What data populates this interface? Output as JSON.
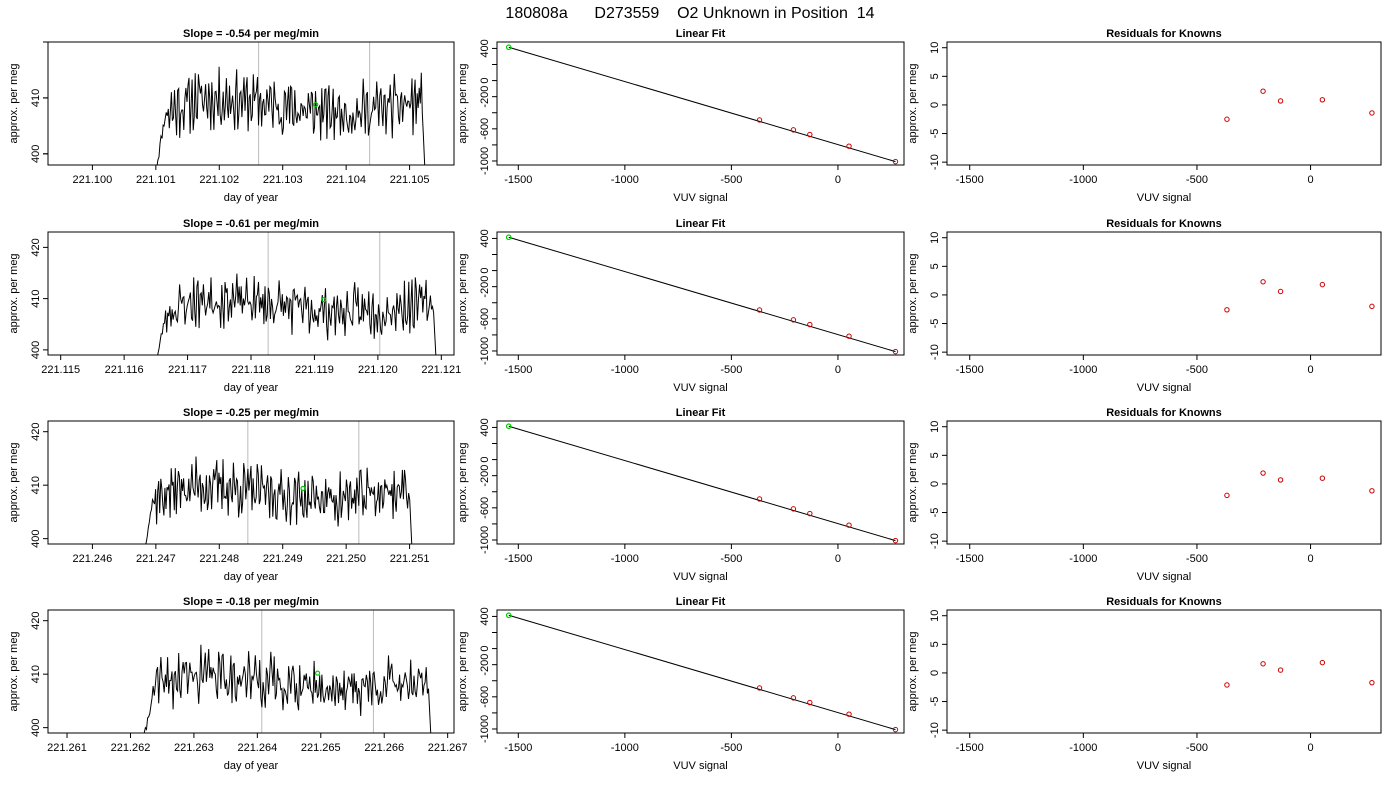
{
  "figure": {
    "title": "180808a      D273559    O2 Unknown in Position  14"
  },
  "colors": {
    "trace": "#000000",
    "unknown_point": "#00cc00",
    "known_points": "#cc0000",
    "marker_lines": "#bbbbbb",
    "axes": "#000000"
  },
  "chart_data": [
    {
      "type": "line",
      "row": 1,
      "title": "Slope =  -0.54  per meg/min",
      "xlabel": "day of year",
      "ylabel": "approx. per meg",
      "xlim": [
        221.0993,
        221.1057
      ],
      "ylim": [
        398,
        420
      ],
      "xticks": [
        "221.100",
        "221.101",
        "221.102",
        "221.103",
        "221.104",
        "221.105"
      ],
      "yticks": [
        "400",
        "410"
      ],
      "trace_range": [
        221.101,
        221.10525
      ],
      "vlines": [
        221.10262,
        221.10437
      ],
      "unknown_point": {
        "x": 221.10352,
        "y": 408.8
      },
      "seed": 11
    },
    {
      "type": "line",
      "row": 1,
      "title": "Linear Fit",
      "xlabel": "VUV signal",
      "ylabel": "approx. per meg",
      "xlim": [
        -1600,
        310
      ],
      "ylim": [
        -1050,
        480
      ],
      "xticks": [
        "-1500",
        "-1000",
        "-500",
        "0"
      ],
      "yticks": [
        "-1000",
        "-600",
        "-200",
        "0",
        "400"
      ],
      "fit_line": {
        "x": [
          -1545,
          270
        ],
        "y": [
          415,
          -1008
        ]
      },
      "known_points": {
        "x": [
          -368,
          -209,
          -132,
          52,
          270
        ],
        "y": [
          -490,
          -613,
          -671,
          -816,
          -1008
        ]
      },
      "unknown_point": {
        "x": -1545,
        "y": 415
      }
    },
    {
      "type": "scatter",
      "row": 1,
      "title": "Residuals for Knowns",
      "xlabel": "VUV signal",
      "ylabel": "approx. per meg",
      "xlim": [
        -1600,
        310
      ],
      "ylim": [
        -10.5,
        11
      ],
      "xticks": [
        "-1500",
        "-1000",
        "-500",
        "0"
      ],
      "yticks": [
        "-10",
        "-5",
        "0",
        "5",
        "10"
      ],
      "known_points": {
        "x": [
          -368,
          -209,
          -132,
          52,
          270
        ],
        "y": [
          -2.5,
          2.4,
          0.7,
          0.9,
          -1.4
        ]
      }
    },
    {
      "type": "line",
      "row": 2,
      "title": "Slope =  -0.61  per meg/min",
      "xlabel": "day of year",
      "ylabel": "approx. per meg",
      "xlim": [
        221.1148,
        221.1212
      ],
      "ylim": [
        399,
        423
      ],
      "xticks": [
        "221.115",
        "221.116",
        "221.117",
        "221.118",
        "221.119",
        "221.120",
        "221.121"
      ],
      "yticks": [
        "400",
        "410",
        "420"
      ],
      "trace_range": [
        221.1165,
        221.12093
      ],
      "vlines": [
        221.11827,
        221.12003
      ],
      "unknown_point": {
        "x": 221.11915,
        "y": 409.8
      },
      "seed": 23
    },
    {
      "type": "line",
      "row": 2,
      "title": "Linear Fit",
      "xlabel": "VUV signal",
      "ylabel": "approx. per meg",
      "xlim": [
        -1600,
        310
      ],
      "ylim": [
        -1050,
        480
      ],
      "xticks": [
        "-1500",
        "-1000",
        "-500",
        "0"
      ],
      "yticks": [
        "-1000",
        "-600",
        "-200",
        "0",
        "400"
      ],
      "fit_line": {
        "x": [
          -1545,
          270
        ],
        "y": [
          415,
          -1008
        ]
      },
      "known_points": {
        "x": [
          -368,
          -209,
          -132,
          52,
          270
        ],
        "y": [
          -490,
          -613,
          -671,
          -816,
          -1008
        ]
      },
      "unknown_point": {
        "x": -1545,
        "y": 415
      }
    },
    {
      "type": "scatter",
      "row": 2,
      "title": "Residuals for Knowns",
      "xlabel": "VUV signal",
      "ylabel": "approx. per meg",
      "xlim": [
        -1600,
        310
      ],
      "ylim": [
        -10.5,
        11
      ],
      "xticks": [
        "-1500",
        "-1000",
        "-500",
        "0"
      ],
      "yticks": [
        "-10",
        "-5",
        "0",
        "5",
        "10"
      ],
      "known_points": {
        "x": [
          -368,
          -209,
          -132,
          52,
          270
        ],
        "y": [
          -2.6,
          2.3,
          0.6,
          1.8,
          -2.0
        ]
      }
    },
    {
      "type": "line",
      "row": 3,
      "title": "Slope =  -0.25  per meg/min",
      "xlabel": "day of year",
      "ylabel": "approx. per meg",
      "xlim": [
        221.2453,
        221.2517
      ],
      "ylim": [
        399,
        422
      ],
      "xticks": [
        "221.246",
        "221.247",
        "221.248",
        "221.249",
        "221.250",
        "221.251"
      ],
      "yticks": [
        "400",
        "410",
        "420"
      ],
      "trace_range": [
        221.2468,
        221.25105
      ],
      "vlines": [
        221.24845,
        221.2502
      ],
      "unknown_point": {
        "x": 221.24932,
        "y": 409.4
      },
      "seed": 37
    },
    {
      "type": "line",
      "row": 3,
      "title": "Linear Fit",
      "xlabel": "VUV signal",
      "ylabel": "approx. per meg",
      "xlim": [
        -1600,
        310
      ],
      "ylim": [
        -1050,
        480
      ],
      "xticks": [
        "-1500",
        "-1000",
        "-500",
        "0"
      ],
      "yticks": [
        "-1000",
        "-600",
        "-200",
        "0",
        "400"
      ],
      "fit_line": {
        "x": [
          -1545,
          270
        ],
        "y": [
          415,
          -1008
        ]
      },
      "known_points": {
        "x": [
          -368,
          -209,
          -132,
          52,
          270
        ],
        "y": [
          -490,
          -613,
          -671,
          -816,
          -1008
        ]
      },
      "unknown_point": {
        "x": -1545,
        "y": 415
      }
    },
    {
      "type": "scatter",
      "row": 3,
      "title": "Residuals for Knowns",
      "xlabel": "VUV signal",
      "ylabel": "approx. per meg",
      "xlim": [
        -1600,
        310
      ],
      "ylim": [
        -10.5,
        11
      ],
      "xticks": [
        "-1500",
        "-1000",
        "-500",
        "0"
      ],
      "yticks": [
        "-10",
        "-5",
        "0",
        "5",
        "10"
      ],
      "known_points": {
        "x": [
          -368,
          -209,
          -132,
          52,
          270
        ],
        "y": [
          -2.0,
          1.9,
          0.7,
          1.0,
          -1.2
        ]
      }
    },
    {
      "type": "line",
      "row": 4,
      "title": "Slope =  -0.18  per meg/min",
      "xlabel": "day of year",
      "ylabel": "approx. per meg",
      "xlim": [
        221.2607,
        221.2671
      ],
      "ylim": [
        399,
        422
      ],
      "xticks": [
        "221.261",
        "221.262",
        "221.263",
        "221.264",
        "221.265",
        "221.266",
        "221.267"
      ],
      "yticks": [
        "400",
        "410",
        "420"
      ],
      "trace_range": [
        221.2622,
        221.26675
      ],
      "vlines": [
        221.26407,
        221.26583
      ],
      "unknown_point": {
        "x": 221.26495,
        "y": 410.2
      },
      "seed": 41
    },
    {
      "type": "line",
      "row": 4,
      "title": "Linear Fit",
      "xlabel": "VUV signal",
      "ylabel": "approx. per meg",
      "xlim": [
        -1600,
        310
      ],
      "ylim": [
        -1050,
        480
      ],
      "xticks": [
        "-1500",
        "-1000",
        "-500",
        "0"
      ],
      "yticks": [
        "-1000",
        "-600",
        "-200",
        "0",
        "400"
      ],
      "fit_line": {
        "x": [
          -1545,
          270
        ],
        "y": [
          415,
          -1008
        ]
      },
      "known_points": {
        "x": [
          -368,
          -209,
          -132,
          52,
          270
        ],
        "y": [
          -490,
          -613,
          -671,
          -816,
          -1008
        ]
      },
      "unknown_point": {
        "x": -1545,
        "y": 415
      }
    },
    {
      "type": "scatter",
      "row": 4,
      "title": "Residuals for Knowns",
      "xlabel": "VUV signal",
      "ylabel": "approx. per meg",
      "xlim": [
        -1600,
        310
      ],
      "ylim": [
        -10.5,
        11
      ],
      "xticks": [
        "-1500",
        "-1000",
        "-500",
        "0"
      ],
      "yticks": [
        "-10",
        "-5",
        "0",
        "5",
        "10"
      ],
      "known_points": {
        "x": [
          -368,
          -209,
          -132,
          52,
          270
        ],
        "y": [
          -2.1,
          1.6,
          0.5,
          1.8,
          -1.7
        ]
      }
    }
  ]
}
